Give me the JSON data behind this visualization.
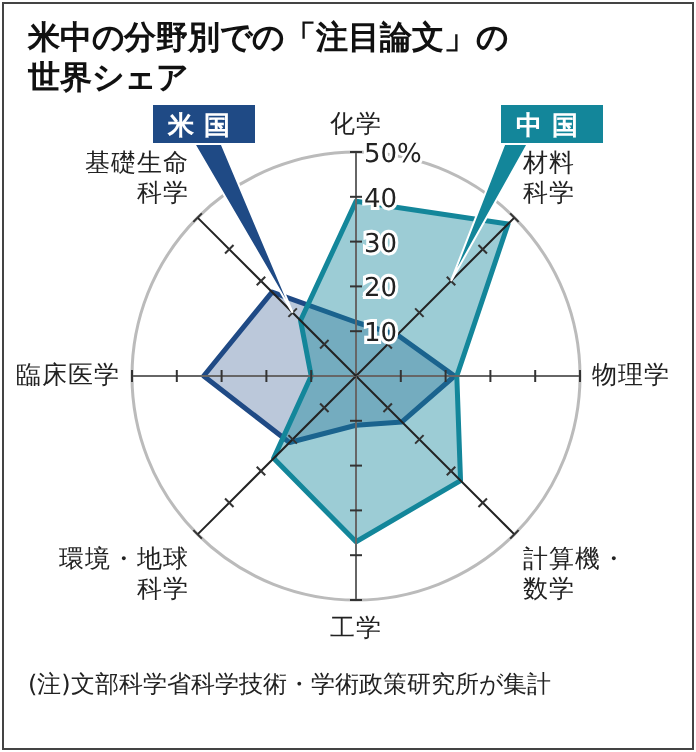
{
  "chart_data": {
    "type": "radar",
    "title": "米中の分野別での「注目論文」の世界シェア",
    "categories": [
      "化学",
      "材料科学",
      "物理学",
      "計算機・数学",
      "工学",
      "環境・地球科学",
      "臨床医学",
      "基礎生命科学"
    ],
    "series": [
      {
        "name": "米国",
        "color": "#1f4a85",
        "values": [
          12,
          13,
          22,
          14.5,
          11,
          21,
          34,
          26.5
        ]
      },
      {
        "name": "中国",
        "color": "#13869a",
        "values": [
          39,
          48,
          22.5,
          33,
          37,
          26,
          10,
          17.5
        ]
      }
    ],
    "ylim": [
      0,
      50
    ],
    "yticks": [
      {
        "value": 10,
        "label": "10"
      },
      {
        "value": 20,
        "label": "20"
      },
      {
        "value": 30,
        "label": "30"
      },
      {
        "value": 40,
        "label": "40"
      },
      {
        "value": 50,
        "label": "50%"
      }
    ],
    "legend": "top",
    "annotations": [
      "(注)文部科学省科学技術・学術政策研究所が集計"
    ]
  }
}
